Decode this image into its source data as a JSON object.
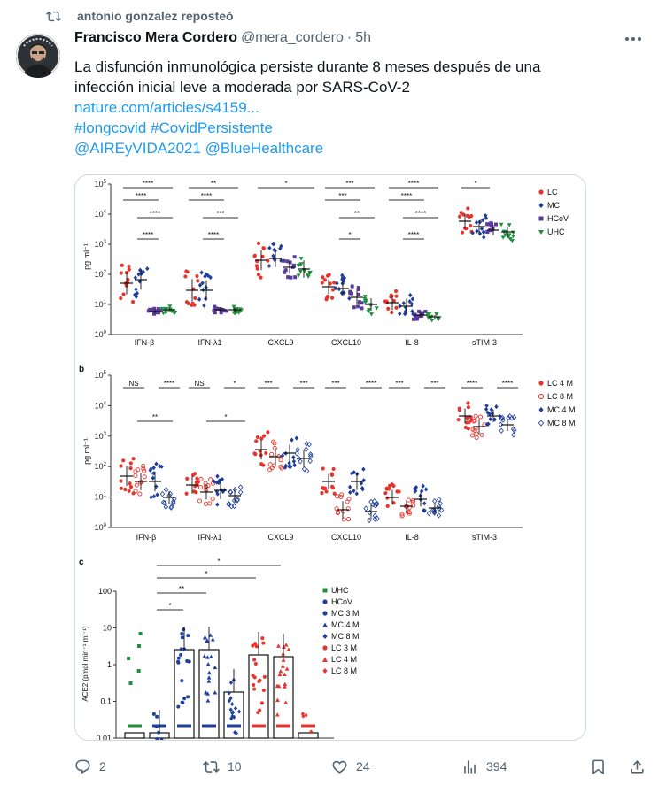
{
  "repost": {
    "label": "antonio gonzalez reposteó"
  },
  "tweet": {
    "author_name": "Francisco Mera Cordero",
    "handle": "@mera_cordero",
    "separator": "·",
    "time": "5h",
    "text_line1": "La disfunción inmunológica persiste durante 8 meses después de una",
    "text_line2": "infección inicial leve a moderada por SARS-CoV-2",
    "link": "nature.com/articles/s4159...",
    "hashtags": "#longcovid #CovidPersistente",
    "mentions": "@AIREyVIDA2021  @BlueHealthcare"
  },
  "actions": {
    "replies": "2",
    "reposts": "10",
    "likes": "24",
    "views": "394"
  },
  "colors": {
    "link": "#1d9bf0",
    "secondary": "#536471",
    "repost_active": "#00ba7c"
  },
  "figure": {
    "panel_a": {
      "label": "",
      "y_ticks": [
        "10^5",
        "10^4",
        "10^3",
        "10^2",
        "10^1",
        "10^0"
      ],
      "ylabel": "pg ml⁻¹",
      "categories": [
        "IFN-β",
        "IFN-λ1",
        "CXCL9",
        "CXCL10",
        "IL-8",
        "sTIM-3"
      ],
      "legend": [
        "LC",
        "MC",
        "HCoV",
        "UHC"
      ],
      "significance": [
        "****",
        "****",
        "****",
        "****",
        "**",
        "****",
        "****",
        "***",
        "*",
        "***",
        "**",
        "*",
        "****",
        "****",
        "****",
        "****",
        "*"
      ]
    },
    "panel_b": {
      "label": "b",
      "y_ticks": [
        "10^5",
        "10^4",
        "10^3",
        "10^2",
        "10^1",
        "10^0"
      ],
      "ylabel": "pg ml⁻¹",
      "categories": [
        "IFN-β",
        "IFN-λ1",
        "CXCL9",
        "CXCL10",
        "IL-8",
        "sTIM-3"
      ],
      "legend": [
        "LC 4 M",
        "LC 8 M",
        "MC 4 M",
        "MC 8 M"
      ],
      "significance_top": [
        "NS",
        "****",
        "NS",
        "*",
        "***",
        "***",
        "***",
        "****",
        "***",
        "***",
        "****",
        "****"
      ],
      "significance_bottom": [
        "**",
        "*"
      ]
    },
    "panel_c": {
      "label": "c",
      "ylabel": "ACE2 (pmol min⁻¹ ml⁻¹)",
      "y_ticks": [
        "100",
        "10",
        "1",
        "0.1",
        "0.01"
      ],
      "legend": [
        "UHC",
        "HCoV",
        "MC 3 M",
        "MC 4 M",
        "MC 8 M",
        "LC 3 M",
        "LC 4 M",
        "LC 8 M"
      ],
      "significance": [
        "*",
        "**",
        "*",
        "*"
      ]
    }
  }
}
